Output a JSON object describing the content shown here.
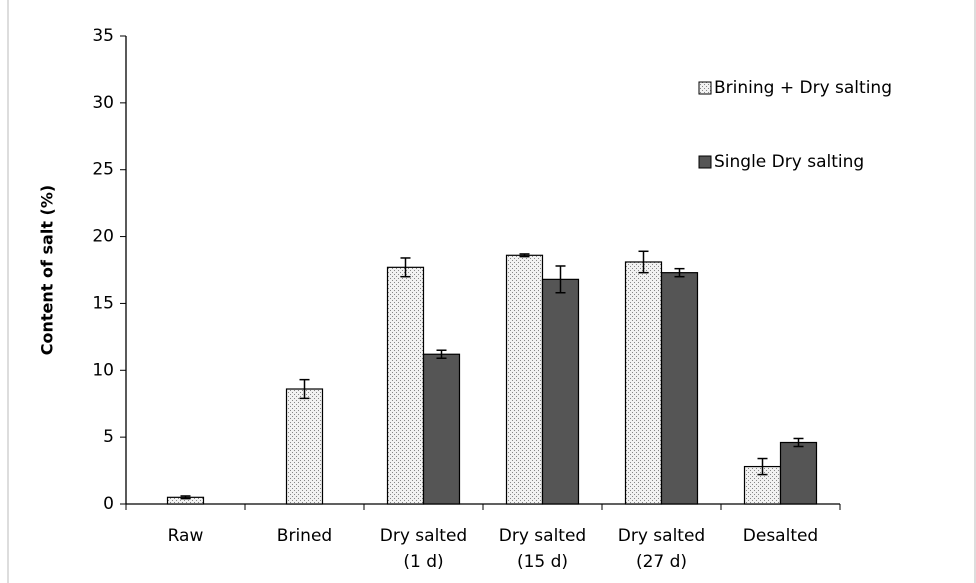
{
  "chart_data": {
    "type": "bar",
    "categories": [
      "Raw",
      "Brined",
      "Dry salted (1 d)",
      "Dry salted (15 d)",
      "Dry salted (27 d)",
      "Desalted"
    ],
    "series": [
      {
        "name": "Brining + Dry salting",
        "color": "#e6e6e6",
        "pattern": "dots",
        "values": [
          0.5,
          8.6,
          17.7,
          18.6,
          18.1,
          2.8
        ],
        "errors": [
          0.1,
          0.7,
          0.7,
          0.1,
          0.8,
          0.6
        ]
      },
      {
        "name": "Single Dry salting",
        "color": "#555555",
        "values": [
          null,
          null,
          11.2,
          16.8,
          17.3,
          4.6
        ],
        "errors": [
          null,
          null,
          0.3,
          1.0,
          0.3,
          0.3
        ]
      }
    ],
    "ylabel": "Content of salt  (%)",
    "ylim": [
      0,
      35
    ],
    "yticks": [
      0,
      5,
      10,
      15,
      20,
      25,
      30,
      35
    ],
    "legend": "upper right",
    "grid": false
  }
}
